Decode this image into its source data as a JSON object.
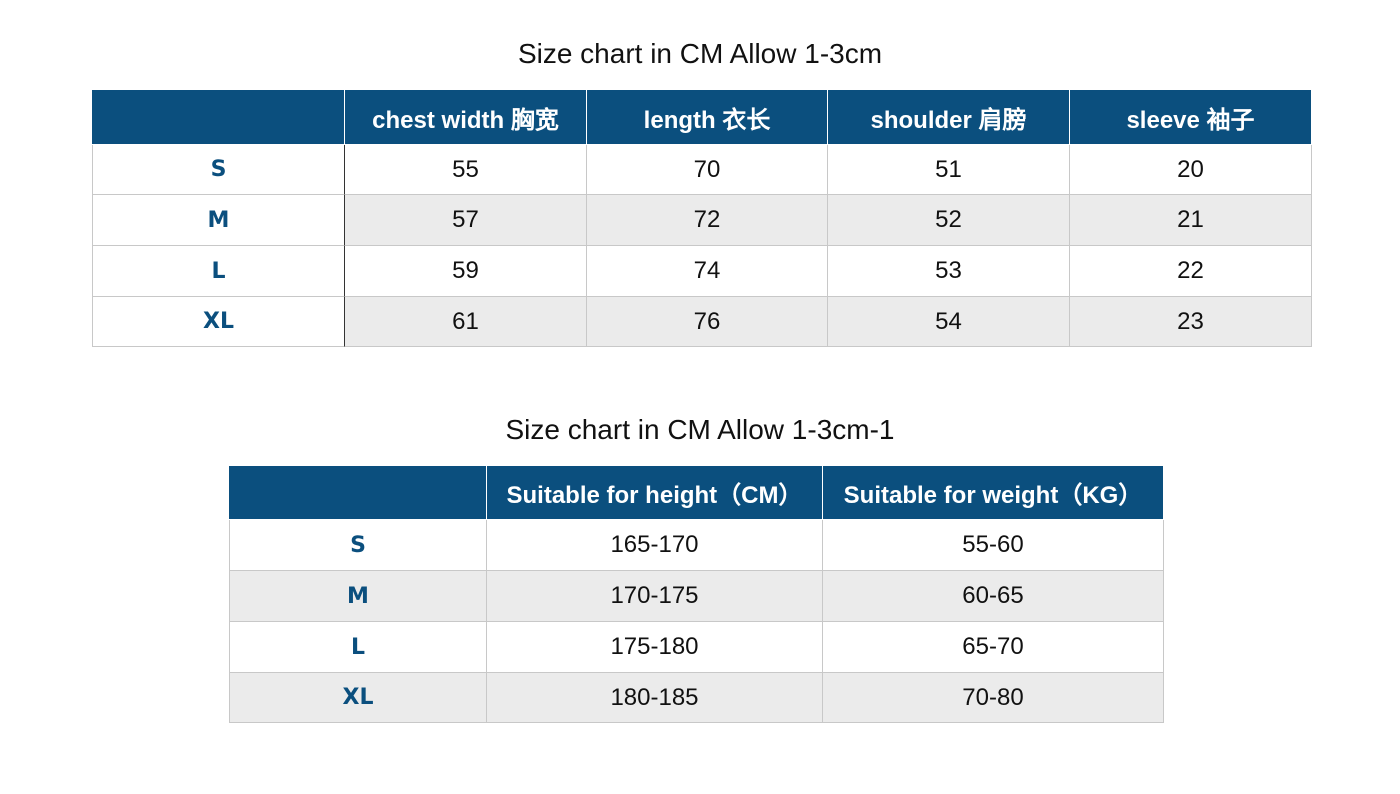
{
  "tables": [
    {
      "title": "Size chart in CM Allow 1-3cm",
      "headers": [
        "chest width 胸宽",
        "length 衣长",
        "shoulder 肩膀",
        "sleeve 袖子"
      ],
      "rows": [
        {
          "size": "S",
          "values": [
            55,
            70,
            51,
            20
          ]
        },
        {
          "size": "M",
          "values": [
            57,
            72,
            52,
            21
          ]
        },
        {
          "size": "L",
          "values": [
            59,
            74,
            53,
            22
          ]
        },
        {
          "size": "XL",
          "values": [
            61,
            76,
            54,
            23
          ]
        }
      ]
    },
    {
      "title": "Size chart in CM Allow 1-3cm-1",
      "headers": [
        "Suitable for height（CM）",
        "Suitable for weight（KG）"
      ],
      "rows": [
        {
          "size": "S",
          "values": [
            "165-170",
            "55-60"
          ]
        },
        {
          "size": "M",
          "values": [
            "170-175",
            "60-65"
          ]
        },
        {
          "size": "L",
          "values": [
            "175-180",
            "65-70"
          ]
        },
        {
          "size": "XL",
          "values": [
            "180-185",
            "70-80"
          ]
        }
      ]
    }
  ]
}
